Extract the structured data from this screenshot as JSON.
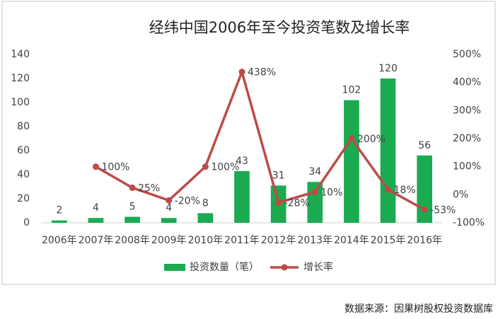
{
  "chart_data": {
    "type": "bar-line",
    "title": "经纬中国2006年至今投资笔数及增长率",
    "source": "数据来源：因果树股权投资数据库",
    "categories": [
      "2006年",
      "2007年",
      "2008年",
      "2009年",
      "2010年",
      "2011年",
      "2012年",
      "2013年",
      "2014年",
      "2015年",
      "2016年"
    ],
    "series": [
      {
        "name": "投资数量（笔）",
        "type": "bar",
        "color": "#1aab50",
        "values": [
          2,
          4,
          5,
          4,
          8,
          43,
          31,
          34,
          102,
          120,
          56
        ]
      },
      {
        "name": "增长率",
        "type": "line",
        "axis": "y2",
        "color": "#bd4b48",
        "values": [
          null,
          100,
          25,
          -20,
          100,
          438,
          -28,
          10,
          200,
          18,
          -53
        ],
        "value_labels": [
          null,
          "100%",
          "25%",
          "-20%",
          "100%",
          "438%",
          "-28%",
          "10%",
          "200%",
          "18%",
          "-53%"
        ]
      }
    ],
    "ylim": [
      0,
      140
    ],
    "yticks": [
      0,
      20,
      40,
      60,
      80,
      100,
      120,
      140
    ],
    "y2lim": [
      -100,
      500
    ],
    "y2ticks": [
      {
        "value": -100,
        "label": "-100%"
      },
      {
        "value": 0,
        "label": "0%"
      },
      {
        "value": 100,
        "label": "100%"
      },
      {
        "value": 200,
        "label": "200%"
      },
      {
        "value": 300,
        "label": "300%"
      },
      {
        "value": 400,
        "label": "400%"
      },
      {
        "value": 500,
        "label": "500%"
      }
    ],
    "legend": "bottom"
  }
}
